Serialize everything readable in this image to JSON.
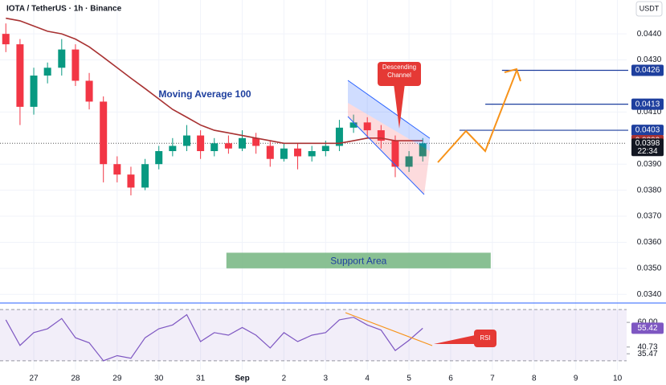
{
  "header": {
    "title": "IOTA / TetherUS · 1h · Binance",
    "currency": "USDT"
  },
  "chart_data": [
    {
      "type": "candlestick",
      "x": [
        -0.67,
        -0.33,
        0,
        0.33,
        0.67,
        1,
        1.33,
        1.67,
        2,
        2.33,
        2.67,
        3,
        3.33,
        3.67,
        4,
        4.33,
        4.67,
        5,
        5.33,
        5.67,
        6,
        6.33,
        6.67,
        7,
        7.33,
        7.67,
        8,
        8.33,
        8.67,
        9,
        9.33
      ],
      "open": [
        0.044,
        0.0436,
        0.0412,
        0.0424,
        0.0427,
        0.0434,
        0.0422,
        0.0414,
        0.039,
        0.0386,
        0.0381,
        0.039,
        0.0395,
        0.0397,
        0.0401,
        0.0395,
        0.0398,
        0.0396,
        0.04,
        0.0397,
        0.0392,
        0.0396,
        0.0393,
        0.0395,
        0.0397,
        0.0404,
        0.0406,
        0.0403,
        0.0399,
        0.0389,
        0.0393
      ],
      "high": [
        0.0444,
        0.0438,
        0.0427,
        0.0429,
        0.0438,
        0.0436,
        0.0425,
        0.0416,
        0.0393,
        0.0389,
        0.0392,
        0.0397,
        0.04,
        0.0405,
        0.0403,
        0.04,
        0.0401,
        0.0403,
        0.0402,
        0.0399,
        0.0398,
        0.0398,
        0.0397,
        0.0399,
        0.0407,
        0.0409,
        0.0408,
        0.0405,
        0.0401,
        0.0395,
        0.04
      ],
      "low": [
        0.0433,
        0.0405,
        0.0409,
        0.0421,
        0.0424,
        0.042,
        0.0411,
        0.0383,
        0.0383,
        0.0378,
        0.038,
        0.0388,
        0.0393,
        0.0395,
        0.0392,
        0.0393,
        0.0394,
        0.0395,
        0.0394,
        0.0389,
        0.0391,
        0.0388,
        0.0391,
        0.0393,
        0.0395,
        0.0402,
        0.04,
        0.0396,
        0.0385,
        0.0387,
        0.0391
      ],
      "close": [
        0.0436,
        0.0412,
        0.0424,
        0.0427,
        0.0434,
        0.0422,
        0.0414,
        0.039,
        0.0386,
        0.0381,
        0.039,
        0.0395,
        0.0397,
        0.0401,
        0.0395,
        0.0398,
        0.0396,
        0.04,
        0.0397,
        0.0392,
        0.0396,
        0.0393,
        0.0395,
        0.0397,
        0.0404,
        0.0406,
        0.0403,
        0.0399,
        0.0389,
        0.0393,
        0.0398
      ],
      "up_color": "#089981",
      "down_color": "#f23645",
      "countdown": "22:34",
      "series": [
        {
          "name": "Moving Average 100",
          "color": "#a83232",
          "values": [
            0.0446,
            0.0445,
            0.0443,
            0.0441,
            0.044,
            0.0438,
            0.0435,
            0.0431,
            0.0427,
            0.0423,
            0.0419,
            0.0415,
            0.0411,
            0.0408,
            0.0405,
            0.0403,
            0.0402,
            0.0401,
            0.04,
            0.0399,
            0.0398,
            0.0398,
            0.0398,
            0.0398,
            0.0398,
            0.0399,
            0.04,
            0.04,
            0.0399,
            0.0399,
            0.0399
          ]
        }
      ],
      "levels": [
        {
          "value": 0.0426,
          "from": 11.23
        },
        {
          "value": 0.0413,
          "from": 10.83
        },
        {
          "value": 0.0403,
          "from": 10.21
        }
      ],
      "level_color": "#1e3f9e",
      "support_area": {
        "label": "Support Area",
        "range": [
          0.035,
          0.0356
        ],
        "x": [
          4.62,
          10.96
        ]
      },
      "channel_label": "Descending Channel",
      "xlim": [
        -0.81,
        14.22
      ],
      "xticks": [
        {
          "value": 0,
          "label": "27"
        },
        {
          "value": 1,
          "label": "28"
        },
        {
          "value": 2,
          "label": "29"
        },
        {
          "value": 3,
          "label": "30"
        },
        {
          "value": 4,
          "label": "31"
        },
        {
          "value": 5,
          "label": "Sep"
        },
        {
          "value": 6,
          "label": "2"
        },
        {
          "value": 7,
          "label": "3"
        },
        {
          "value": 8,
          "label": "4"
        },
        {
          "value": 9,
          "label": "5"
        },
        {
          "value": 10,
          "label": "6"
        },
        {
          "value": 11,
          "label": "7"
        },
        {
          "value": 12,
          "label": "8"
        },
        {
          "value": 13,
          "label": "9"
        },
        {
          "value": 14,
          "label": "10"
        }
      ],
      "ylim": [
        0.0337,
        0.0453
      ],
      "yticks": [
        {
          "value": 0.044,
          "label": "0.0440"
        },
        {
          "value": 0.043,
          "label": "0.0430"
        },
        {
          "value": 0.041,
          "label": "0.0410"
        },
        {
          "value": 0.039,
          "label": "0.0390"
        },
        {
          "value": 0.038,
          "label": "0.0380"
        },
        {
          "value": 0.037,
          "label": "0.0370"
        },
        {
          "value": 0.036,
          "label": "0.0360"
        },
        {
          "value": 0.035,
          "label": "0.0350"
        },
        {
          "value": 0.034,
          "label": "0.0340"
        }
      ],
      "grid": true
    },
    {
      "type": "line",
      "name": "RSI",
      "color": "#7e57c2",
      "values": [
        62,
        42,
        52,
        55,
        63,
        48,
        44,
        30,
        34,
        32,
        48,
        55,
        58,
        66,
        45,
        52,
        50,
        56,
        50,
        40,
        52,
        45,
        50,
        52,
        62,
        64,
        58,
        54,
        38,
        46,
        55.42
      ],
      "band": [
        30,
        70
      ],
      "ylim": [
        23,
        74.5
      ],
      "yticks": [
        {
          "value": 60,
          "label": "60.00"
        },
        {
          "value": 40.73,
          "label": "40.73"
        },
        {
          "value": 35.47,
          "label": "35.47"
        }
      ]
    }
  ]
}
